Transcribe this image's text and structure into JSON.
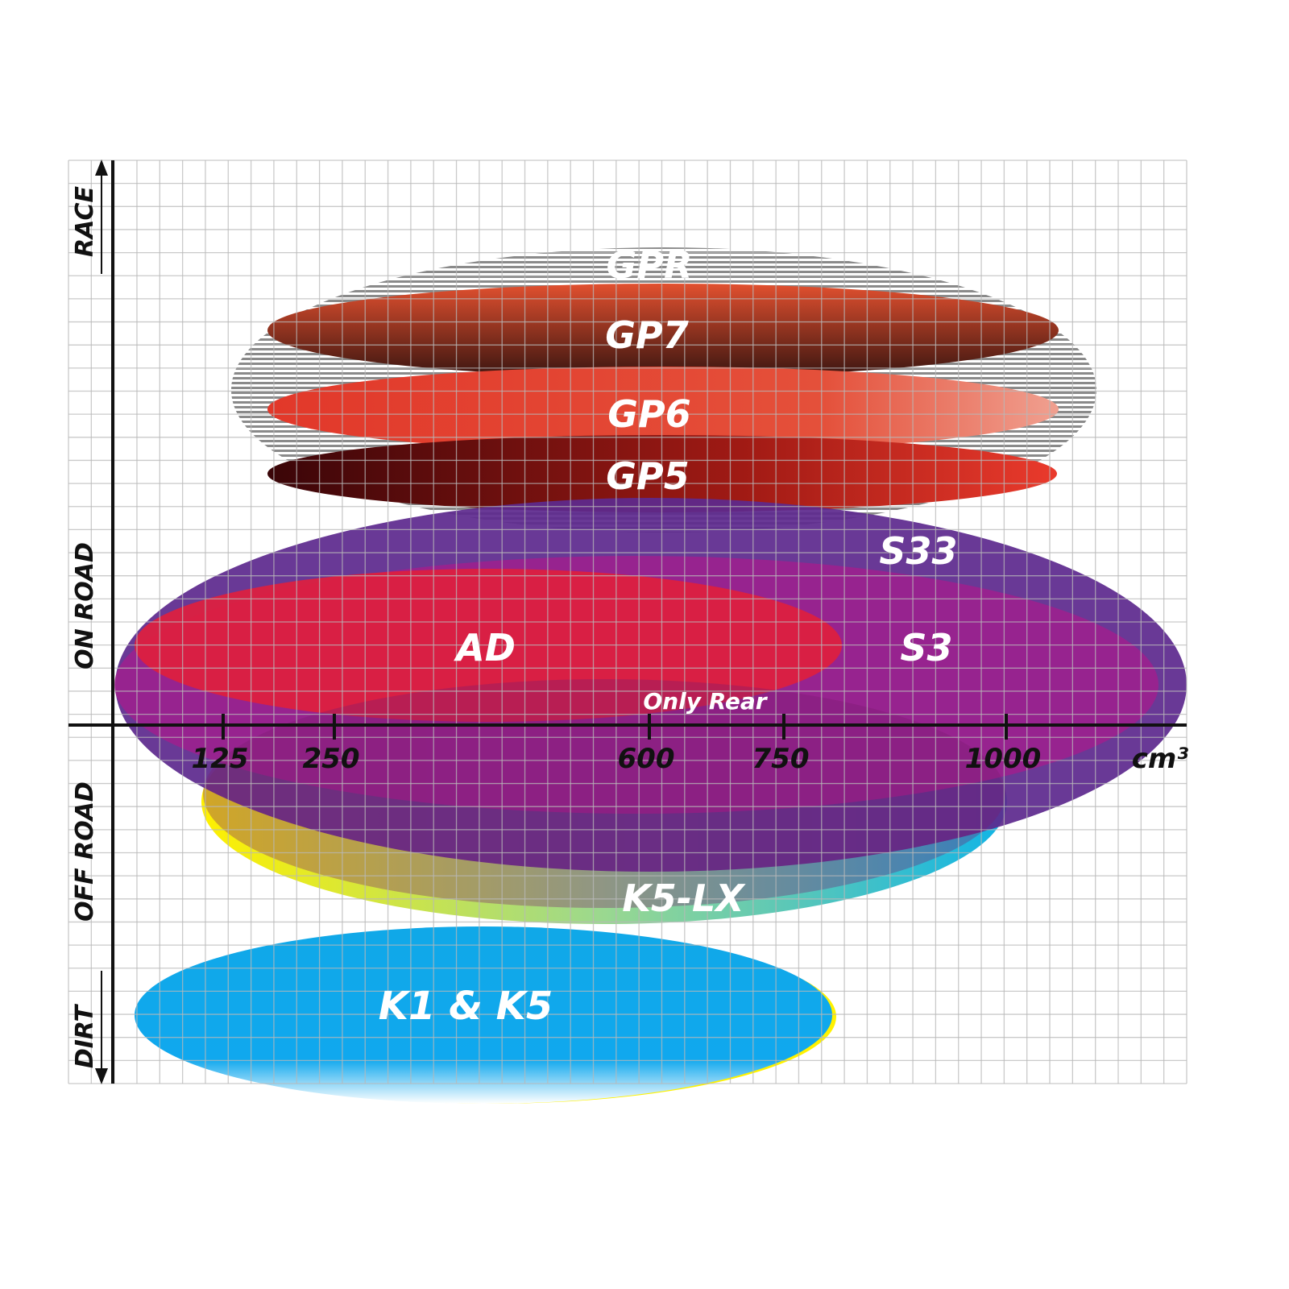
{
  "y_axis": {
    "zones": [
      "RACE",
      "ON ROAD",
      "OFF ROAD",
      "DIRT"
    ]
  },
  "x_axis": {
    "unit": "cm³",
    "ticks": [
      "125",
      "250",
      "600",
      "750",
      "1000"
    ]
  },
  "tires": [
    {
      "id": "gpr",
      "label": "GPR",
      "colors": [
        "#9a9a9a",
        "#ffffff"
      ]
    },
    {
      "id": "gp7",
      "label": "GP7",
      "colors": [
        "#e04a2e",
        "#3a1510"
      ]
    },
    {
      "id": "gp6",
      "label": "GP6",
      "colors": [
        "#e2382a",
        "#f0a090"
      ]
    },
    {
      "id": "gp5",
      "label": "GP5",
      "colors": [
        "#3a0508",
        "#ea3a2c"
      ]
    },
    {
      "id": "s33",
      "label": "S33",
      "colors": [
        "#5e2a8e"
      ]
    },
    {
      "id": "s3",
      "label": "S3",
      "colors": [
        "#a0208e"
      ]
    },
    {
      "id": "ad",
      "label": "AD",
      "colors": [
        "#dc2040"
      ]
    },
    {
      "id": "k5lx",
      "label": "K5-LX",
      "colors": [
        "#fff000",
        "#10b4e6"
      ]
    },
    {
      "id": "k1k5",
      "label": "K1 & K5",
      "colors": [
        "#10a8e8",
        "#fff200"
      ]
    }
  ],
  "annotations": {
    "only_rear": "Only Rear"
  }
}
